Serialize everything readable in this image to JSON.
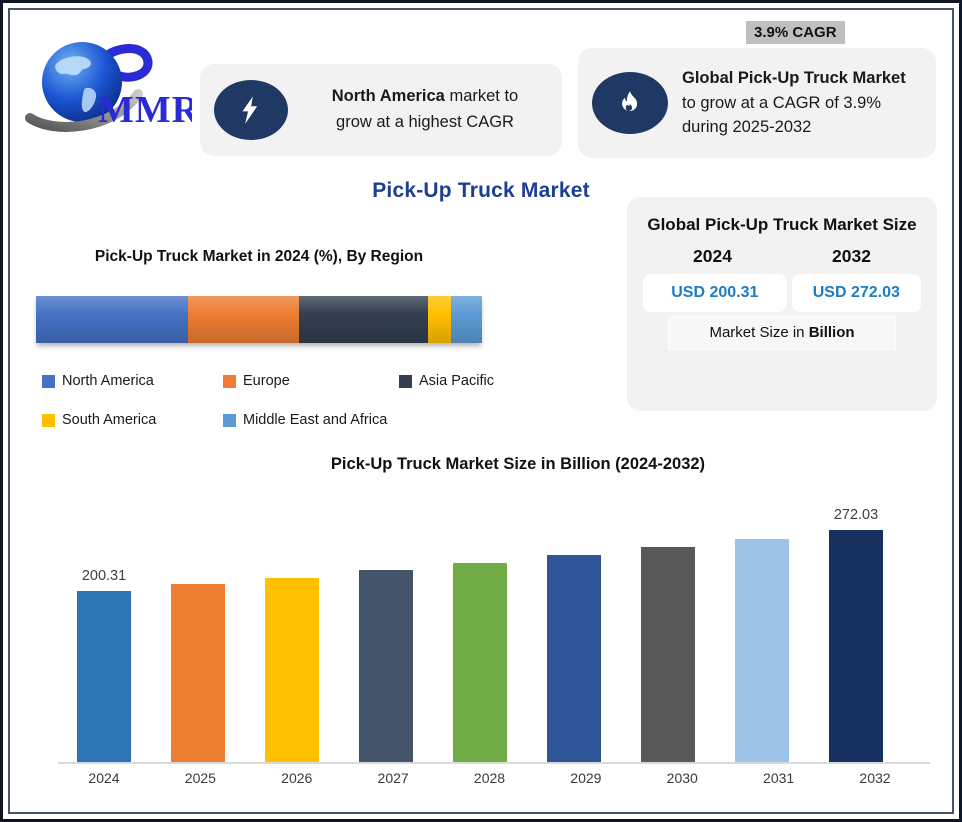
{
  "brand": {
    "name": "MMR",
    "logo": "globe-swoosh",
    "color": "#2B2BD6"
  },
  "header": {
    "highlight_card": {
      "icon": "lightning-bolt-icon",
      "bold": "North America",
      "rest": "market to",
      "line2": "grow at a highest CAGR"
    },
    "cagr_badge": "3.9% CAGR",
    "cagr_card": {
      "icon": "flame-icon",
      "bold": "Global Pick-Up Truck Market",
      "line2": "to grow at a CAGR of 3.9%",
      "line3": "during 2025-2032"
    }
  },
  "main_title": "Pick-Up Truck Market",
  "market_size_panel": {
    "title": "Global Pick-Up Truck Market Size",
    "year_left": "2024",
    "year_right": "2032",
    "value_left": "USD 200.31",
    "value_right": "USD 272.03",
    "note_prefix": "Market Size in",
    "note_bold": "Billion",
    "value_color": "#1C7CC5"
  },
  "colors": {
    "title_blue": "#1C3E93",
    "card_bg": "#F2F2F2",
    "icon_navy": "#1F3864",
    "badge_bg": "#BFBFBF"
  },
  "chart_data": [
    {
      "type": "bar",
      "variant": "horizontal-stacked",
      "title": "Pick-Up Truck Market in 2024 (%), By Region",
      "categories": [
        "North America",
        "Europe",
        "Asia Pacific",
        "South America",
        "Middle East and Africa"
      ],
      "values_percent_est": [
        34,
        25,
        29,
        5,
        7
      ],
      "colors": [
        "#4472C4",
        "#ED7D31",
        "#333F50",
        "#FFC000",
        "#5B9BD5"
      ],
      "legend_position": "below",
      "axes": "none"
    },
    {
      "type": "bar",
      "title": "Pick-Up Truck Market Size in Billion (2024-2032)",
      "categories": [
        "2024",
        "2025",
        "2026",
        "2027",
        "2028",
        "2029",
        "2030",
        "2031",
        "2032"
      ],
      "values": [
        200.31,
        208.12,
        216.24,
        224.67,
        233.43,
        242.54,
        252.0,
        261.82,
        272.03
      ],
      "values_note": "Only 2024 and 2032 carry data labels; intermediate values estimated from bar heights (3.9% CAGR)",
      "labeled_points": {
        "2024": "200.31",
        "2032": "272.03"
      },
      "colors": [
        "#2E75B6",
        "#ED7D31",
        "#FFC000",
        "#44546A",
        "#70AD47",
        "#2F5597",
        "#595959",
        "#9DC3E6",
        "#16305F"
      ],
      "xlabel": "",
      "ylabel": "",
      "ylim": [
        0,
        300
      ],
      "grid": false,
      "unit": "USD Billion"
    }
  ]
}
